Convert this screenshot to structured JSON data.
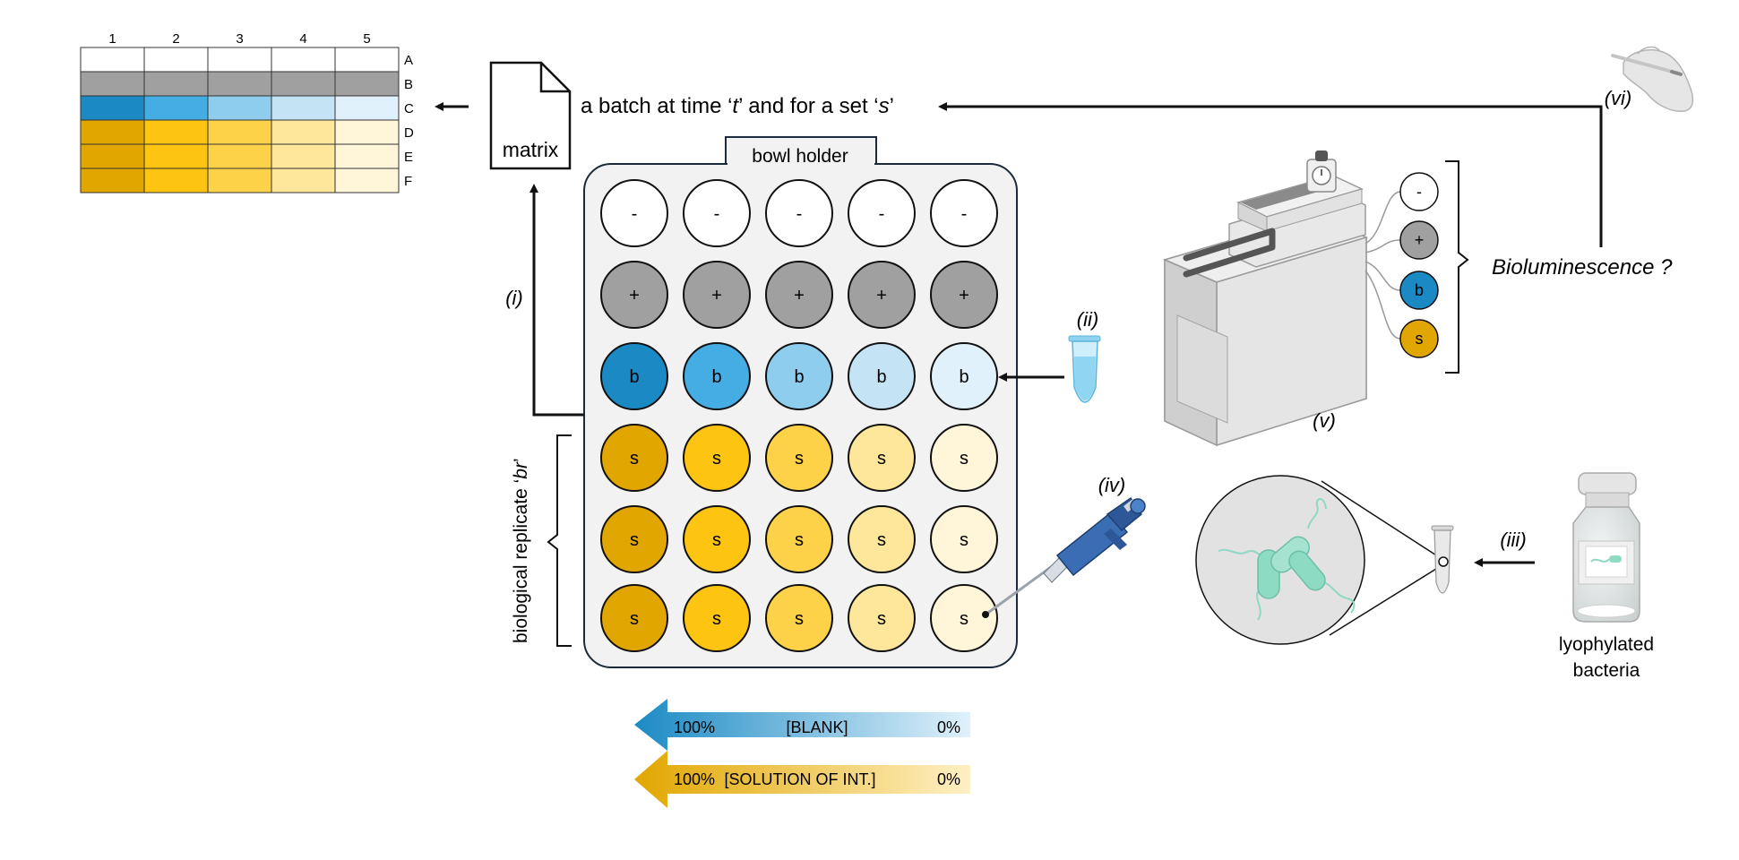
{
  "grid": {
    "columns": [
      "1",
      "2",
      "3",
      "4",
      "5"
    ],
    "rows": [
      "A",
      "B",
      "C",
      "D",
      "E",
      "F"
    ],
    "row_colors": [
      [
        "#ffffff",
        "#ffffff",
        "#ffffff",
        "#ffffff",
        "#ffffff"
      ],
      [
        "#a0a0a0",
        "#a0a0a0",
        "#a0a0a0",
        "#a0a0a0",
        "#a0a0a0"
      ],
      [
        "#1b8ac4",
        "#46ade4",
        "#8ecdee",
        "#c4e4f6",
        "#e0f1fb"
      ],
      [
        "#e1a600",
        "#fec412",
        "#fed248",
        "#fee69a",
        "#fff5d9"
      ],
      [
        "#e1a600",
        "#fec412",
        "#fed248",
        "#fee69a",
        "#fff5d9"
      ],
      [
        "#e1a600",
        "#fec412",
        "#fed248",
        "#fee69a",
        "#fff5d9"
      ]
    ]
  },
  "matrix_label": "matrix",
  "batch_label": {
    "part1": "a batch at time ‘",
    "t": "t",
    "part2": "’ and for a set ‘",
    "s": "s",
    "part3": "’"
  },
  "bowl": {
    "label": "bowl holder",
    "rows": [
      {
        "symbol": "-",
        "colors": [
          "#ffffff",
          "#ffffff",
          "#ffffff",
          "#ffffff",
          "#ffffff"
        ]
      },
      {
        "symbol": "+",
        "colors": [
          "#a0a0a0",
          "#a0a0a0",
          "#a0a0a0",
          "#a0a0a0",
          "#a0a0a0"
        ]
      },
      {
        "symbol": "b",
        "colors": [
          "#1b8ac4",
          "#46ade4",
          "#8ecdee",
          "#c4e4f6",
          "#e0f1fb"
        ]
      },
      {
        "symbol": "s",
        "colors": [
          "#e1a600",
          "#fec412",
          "#fed248",
          "#fee69a",
          "#fff5d9"
        ]
      },
      {
        "symbol": "s",
        "colors": [
          "#e1a600",
          "#fec412",
          "#fed248",
          "#fee69a",
          "#fff5d9"
        ]
      },
      {
        "symbol": "s",
        "colors": [
          "#e1a600",
          "#fec412",
          "#fed248",
          "#fee69a",
          "#fff5d9"
        ]
      }
    ]
  },
  "steps": {
    "i": "(i)",
    "ii": "(ii)",
    "iii": "(iii)",
    "iv": "(iv)",
    "v": "(v)",
    "vi": "(vi)"
  },
  "replicate_label": {
    "part1": "biological replicate ‘",
    "br": "br",
    "part2": "’"
  },
  "reader_legend": [
    "-",
    "+",
    "b",
    "s"
  ],
  "bioluminescence_label": "Bioluminescence ?",
  "lyophylated_label": [
    "lyophylated",
    "bacteria"
  ],
  "gradients": {
    "blank": {
      "left": "100%",
      "center": "[BLANK]",
      "right": "0%",
      "color_dark": "#1b8ac4",
      "color_light": "#e0f1fb"
    },
    "solution": {
      "left": "100%",
      "center": "[SOLUTION OF INT.]",
      "right": "0%",
      "color_dark": "#e1a600",
      "color_light": "#fff0c4"
    }
  }
}
